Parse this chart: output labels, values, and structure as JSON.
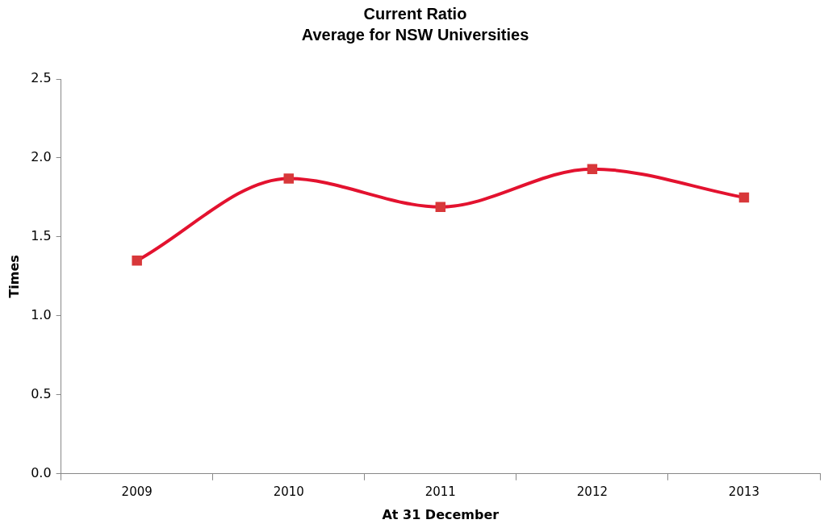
{
  "chart_data": {
    "type": "line",
    "title": "Current Ratio",
    "subtitle": "Average for NSW Universities",
    "xlabel": "At 31 December",
    "ylabel": "Times",
    "categories": [
      "2009",
      "2010",
      "2011",
      "2012",
      "2013"
    ],
    "series": [
      {
        "color": "#e3122f",
        "values": [
          1.35,
          1.87,
          1.69,
          1.93,
          1.75
        ]
      }
    ],
    "ylim": [
      0,
      2.5
    ],
    "yticks": [
      {
        "value": 0,
        "label": "0.0"
      },
      {
        "value": 0.5,
        "label": "0.5"
      },
      {
        "value": 1,
        "label": "1.0"
      },
      {
        "value": 1.5,
        "label": "1.5"
      },
      {
        "value": 2,
        "label": "2.0"
      },
      {
        "value": 2.5,
        "label": "2.5"
      }
    ],
    "grid": false,
    "legend": false,
    "marker": "square",
    "line_style": "solid"
  }
}
